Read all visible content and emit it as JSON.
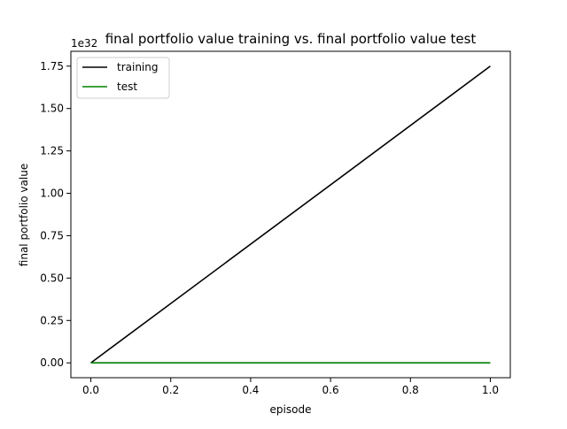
{
  "chart_data": {
    "type": "line",
    "title": "final portfolio value training vs. final portfolio value test",
    "xlabel": "episode",
    "ylabel": "final portfolio value",
    "y_offset_label": "1e32",
    "xlim": [
      -0.05,
      1.05
    ],
    "ylim": [
      -0.0875,
      1.8375
    ],
    "x_ticks": [
      0.0,
      0.2,
      0.4,
      0.6,
      0.8,
      1.0
    ],
    "x_tick_labels": [
      "0.0",
      "0.2",
      "0.4",
      "0.6",
      "0.8",
      "1.0"
    ],
    "y_ticks": [
      0.0,
      0.25,
      0.5,
      0.75,
      1.0,
      1.25,
      1.5,
      1.75
    ],
    "y_tick_labels": [
      "0.00",
      "0.25",
      "0.50",
      "0.75",
      "1.00",
      "1.25",
      "1.50",
      "1.75"
    ],
    "grid": false,
    "legend_position": "top-left",
    "series": [
      {
        "name": "training",
        "color": "#000000",
        "x": [
          0.0,
          1.0
        ],
        "y": [
          0.0,
          1.75
        ]
      },
      {
        "name": "test",
        "color": "#008000",
        "x": [
          0.0,
          1.0
        ],
        "y": [
          0.0,
          0.0
        ]
      }
    ]
  }
}
